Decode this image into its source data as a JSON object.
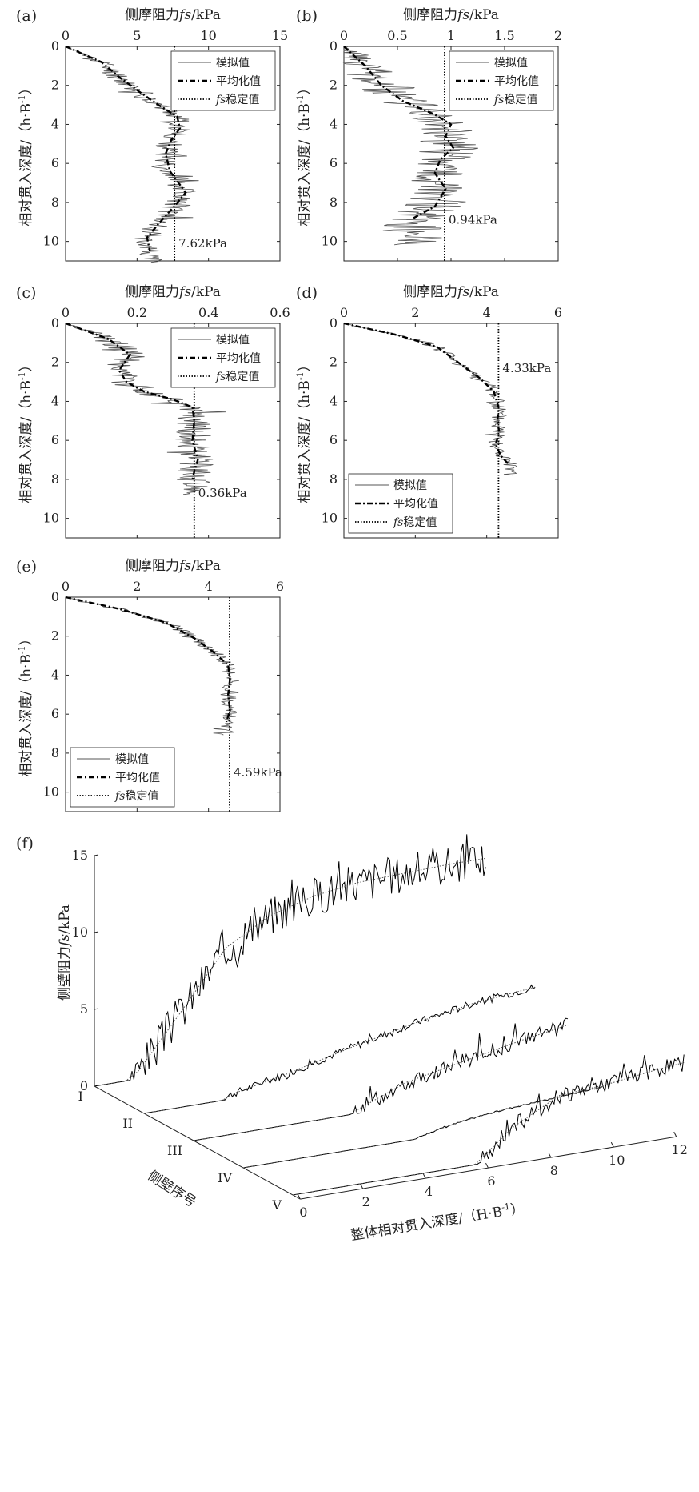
{
  "figure": {
    "x_axis_title_prefix": "侧摩阻力",
    "x_axis_title_var": "fs",
    "x_axis_title_unit": "/kPa",
    "y_axis_title": "相对贯入深度/（h·B",
    "y_axis_title_sup": "-1",
    "y_axis_title_end": "）"
  },
  "legend": {
    "simulated": "模拟值",
    "averaged": "平均化值",
    "stable_var": "fs",
    "stable_rest": "稳定值"
  },
  "colors": {
    "line": "#000000",
    "simulated": "#555555",
    "frame": "#222222"
  },
  "chart_data": [
    {
      "id": "a",
      "letter": "(a)",
      "type": "line",
      "xlim": [
        0,
        15
      ],
      "xticks": [
        0,
        5,
        10,
        15
      ],
      "ylim": [
        0,
        11
      ],
      "yticks": [
        0,
        2,
        4,
        6,
        8,
        10
      ],
      "stable_value": 7.62,
      "stable_label": "7.62kPa",
      "series": [
        {
          "name": "平均化值",
          "x": [
            0,
            2.5,
            3.8,
            5.3,
            6.5,
            7.8,
            8.0,
            7.4,
            7.0,
            7.3,
            8.4,
            7.6,
            6.5,
            5.7,
            5.9
          ],
          "y": [
            0,
            0.8,
            1.6,
            2.4,
            3.0,
            3.6,
            4.2,
            4.8,
            5.5,
            6.4,
            7.5,
            8.2,
            9.1,
            9.8,
            10.5
          ]
        },
        {
          "name": "模拟值",
          "source": "averaged",
          "noise": 0.9,
          "extend": 0.6,
          "seed": 11
        }
      ]
    },
    {
      "id": "b",
      "letter": "(b)",
      "type": "line",
      "xlim": [
        0,
        2
      ],
      "xticks": [
        0,
        0.5,
        1,
        1.5,
        2
      ],
      "ylim": [
        0,
        11
      ],
      "yticks": [
        0,
        2,
        4,
        6,
        8,
        10
      ],
      "stable_value": 0.94,
      "stable_label": "0.94kPa",
      "series": [
        {
          "name": "平均化值",
          "x": [
            0,
            0.2,
            0.35,
            0.55,
            0.85,
            1.0,
            0.95,
            1.02,
            0.9,
            0.85,
            0.95,
            0.85,
            0.65
          ],
          "y": [
            0,
            1.0,
            2.0,
            2.8,
            3.5,
            4.0,
            4.6,
            5.2,
            5.8,
            6.5,
            7.3,
            8.2,
            8.8
          ]
        },
        {
          "name": "模拟值",
          "source": "averaged",
          "noise": 0.28,
          "extend": 1.4,
          "seed": 23
        }
      ]
    },
    {
      "id": "c",
      "letter": "(c)",
      "type": "line",
      "xlim": [
        0,
        0.6
      ],
      "xticks": [
        0,
        0.2,
        0.4,
        0.6
      ],
      "ylim": [
        0,
        11
      ],
      "yticks": [
        0,
        2,
        4,
        6,
        8,
        10
      ],
      "stable_value": 0.36,
      "stable_label": "0.36kPa",
      "series": [
        {
          "name": "平均化值",
          "x": [
            0,
            0.12,
            0.18,
            0.15,
            0.17,
            0.22,
            0.3,
            0.355,
            0.36,
            0.355,
            0.37,
            0.36,
            0.355
          ],
          "y": [
            0,
            0.8,
            1.6,
            2.4,
            3.0,
            3.5,
            3.9,
            4.3,
            5.0,
            6.0,
            7.0,
            7.6,
            8.0
          ]
        },
        {
          "name": "模拟值",
          "source": "averaged",
          "noise": 0.05,
          "extend": 0.8,
          "seed": 37
        }
      ]
    },
    {
      "id": "d",
      "letter": "(d)",
      "type": "line",
      "xlim": [
        0,
        6
      ],
      "xticks": [
        0,
        2,
        4,
        6
      ],
      "ylim": [
        0,
        11
      ],
      "yticks": [
        0,
        2,
        4,
        6,
        8,
        10
      ],
      "stable_value": 4.33,
      "stable_label": "4.33kPa",
      "series": [
        {
          "name": "平均化值",
          "x": [
            0,
            1.5,
            2.6,
            3.2,
            3.8,
            4.2,
            4.33,
            4.3,
            4.35,
            4.25,
            4.4,
            4.6
          ],
          "y": [
            0,
            0.6,
            1.2,
            2.0,
            2.8,
            3.5,
            4.3,
            5.0,
            5.6,
            6.2,
            6.8,
            7.2
          ]
        },
        {
          "name": "模拟值",
          "source": "averaged",
          "noise": 0.25,
          "extend": 0.6,
          "seed": 41
        }
      ]
    },
    {
      "id": "e",
      "letter": "(e)",
      "type": "line",
      "xlim": [
        0,
        6
      ],
      "xticks": [
        0,
        2,
        4,
        6
      ],
      "ylim": [
        0,
        11
      ],
      "yticks": [
        0,
        2,
        4,
        6,
        8,
        10
      ],
      "stable_value": 4.59,
      "stable_label": "4.59kPa",
      "series": [
        {
          "name": "平均化值",
          "x": [
            0,
            1.5,
            2.8,
            3.6,
            4.2,
            4.55,
            4.6,
            4.55,
            4.6,
            4.5
          ],
          "y": [
            0,
            0.6,
            1.3,
            2.1,
            2.9,
            3.5,
            4.2,
            5.0,
            5.8,
            6.4
          ]
        },
        {
          "name": "模拟值",
          "source": "averaged",
          "noise": 0.22,
          "extend": 0.7,
          "seed": 53
        }
      ]
    },
    {
      "id": "f",
      "letter": "(f)",
      "type": "line3d",
      "zlabel_prefix": "侧壁阻力",
      "zlabel_var": "fs",
      "zlabel_unit": "/kPa",
      "xlabel": "整体相对贯入深度/（H·B",
      "xlabel_sup": "-1",
      "xlabel_end": "）",
      "ylabel": "侧壁序号",
      "xlim": [
        0,
        12
      ],
      "xticks": [
        0,
        2,
        4,
        6,
        8,
        10,
        12
      ],
      "zlim": [
        0,
        15
      ],
      "zticks": [
        0,
        5,
        10,
        15
      ],
      "categories": [
        "I",
        "II",
        "III",
        "IV",
        "V"
      ],
      "series": [
        {
          "name": "I",
          "x": [
            0,
            1,
            1.4,
            2.8,
            4.2,
            5.6,
            7.0,
            8.4,
            9.8,
            11.2,
            12.5
          ],
          "z": [
            0,
            0,
            0.5,
            4.0,
            7.6,
            9.2,
            10.0,
            10.4,
            10.5,
            10.6,
            10.6
          ],
          "noise": 1.3,
          "seed": 3
        },
        {
          "name": "II",
          "x": [
            0,
            2.5,
            2.8,
            4.5,
            6.5,
            8.5,
            10.5,
            12.5
          ],
          "z": [
            0,
            0,
            0.3,
            1.0,
            2.0,
            2.9,
            3.6,
            4.0
          ],
          "noise": 0.25,
          "seed": 7
        },
        {
          "name": "III",
          "x": [
            0,
            5.0,
            5.3,
            6.8,
            8.5,
            10.5,
            12.0
          ],
          "z": [
            0,
            0,
            0.3,
            1.5,
            2.2,
            3.0,
            3.5
          ],
          "noise": 0.5,
          "seed": 13
        },
        {
          "name": "IV",
          "x": [
            0,
            5.5,
            5.6,
            6.5,
            7.5,
            8.5,
            10.0,
            11.5
          ],
          "z": [
            0,
            0,
            0.1,
            0.5,
            0.8,
            1.0,
            1.2,
            1.4
          ],
          "noise": 0.05,
          "seed": 17
        },
        {
          "name": "V",
          "x": [
            0,
            5.8,
            6.0,
            7.0,
            8.5,
            10.0,
            11.5,
            12.5
          ],
          "z": [
            0,
            0,
            0.3,
            2.0,
            3.6,
            3.8,
            4.2,
            4.4
          ],
          "noise": 0.55,
          "seed": 19
        }
      ]
    }
  ]
}
